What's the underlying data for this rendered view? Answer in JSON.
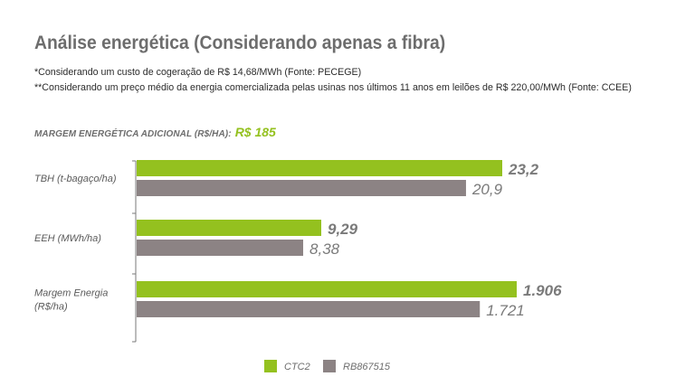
{
  "page": {
    "title": "Análise energética (Considerando apenas a fibra)",
    "note1": "*Considerando um custo de cogeração de R$ 14,68/MWh (Fonte: PECEGE)",
    "note2": "**Considerando um preço médio da energia comercializada pelas usinas nos últimos 11 anos em leilões de R$ 220,00/MWh (Fonte: CCEE)",
    "margin_label": "MARGEM ENERGÉTICA ADICIONAL (R$/HA):",
    "margin_value": "R$ 185"
  },
  "chart_data": {
    "type": "bar",
    "orientation": "horizontal",
    "categories": [
      {
        "label_lines": [
          "TBH (t-bagaço/ha)"
        ],
        "relative_scale": 23.2
      },
      {
        "label_lines": [
          "EEH (MWh/ha)"
        ],
        "relative_scale": 23.2
      },
      {
        "label_lines": [
          "Margem Energia",
          "(R$/ha)"
        ],
        "relative_scale": 1906
      }
    ],
    "series": [
      {
        "name": "CTC2",
        "color": "#94c11f",
        "values": [
          23.2,
          9.29,
          1906
        ],
        "labels": [
          "23,2",
          "9,29",
          "1.906"
        ]
      },
      {
        "name": "RB867515",
        "color": "#8c8384",
        "values": [
          20.9,
          8.38,
          1721
        ],
        "labels": [
          "20,9",
          "8,38",
          "1.721"
        ]
      }
    ],
    "legend_position": "bottom",
    "grid": false
  }
}
